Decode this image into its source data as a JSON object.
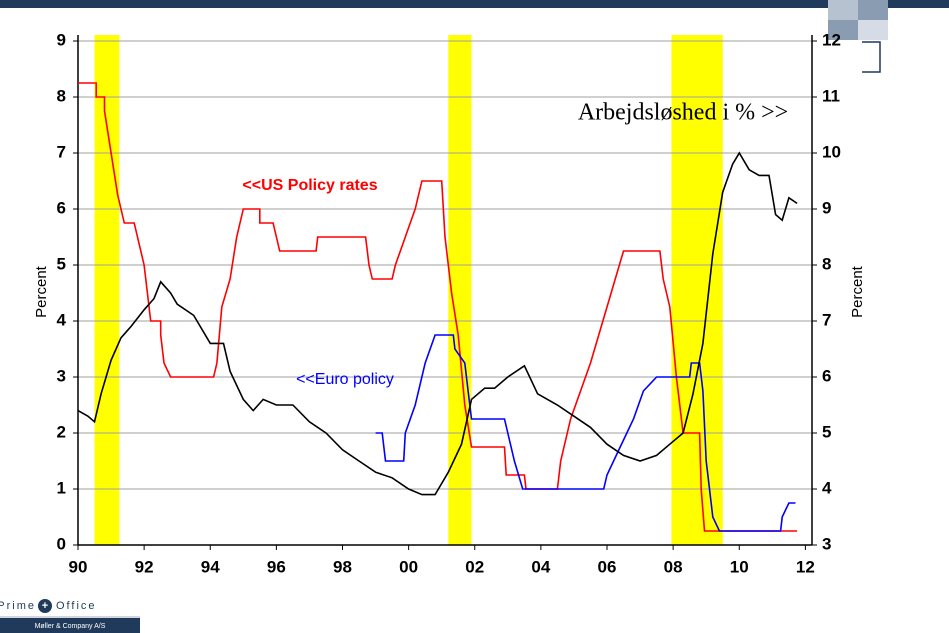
{
  "chart_data": {
    "type": "line",
    "ylabel": "Percent",
    "y2label": "Percent",
    "xlim": [
      1990,
      2012.2
    ],
    "ylim": [
      0,
      9
    ],
    "y2lim": [
      3,
      12
    ],
    "xticks": [
      {
        "value": 1990,
        "label": "90"
      },
      {
        "value": 1992,
        "label": "92"
      },
      {
        "value": 1994,
        "label": "94"
      },
      {
        "value": 1996,
        "label": "96"
      },
      {
        "value": 1998,
        "label": "98"
      },
      {
        "value": 2000,
        "label": "00"
      },
      {
        "value": 2002,
        "label": "02"
      },
      {
        "value": 2004,
        "label": "04"
      },
      {
        "value": 2006,
        "label": "06"
      },
      {
        "value": 2008,
        "label": "08"
      },
      {
        "value": 2010,
        "label": "10"
      },
      {
        "value": 2012,
        "label": "12"
      }
    ],
    "yticks": [
      0,
      1,
      2,
      3,
      4,
      5,
      6,
      7,
      8,
      9
    ],
    "y2ticks": [
      3,
      4,
      5,
      6,
      7,
      8,
      9,
      10,
      11,
      12
    ],
    "grid": true,
    "shaded_periods": {
      "color": "#ffff00",
      "ranges": [
        [
          1990.5,
          1991.25
        ],
        [
          2001.2,
          2001.9
        ],
        [
          2007.95,
          2009.5
        ]
      ]
    },
    "annotations": [
      {
        "text": "<<US Policy rates",
        "color": "#ff0000"
      },
      {
        "text": "<<Euro policy",
        "color": "#0000ff"
      },
      {
        "text": "Arbejdsløshed i % >>",
        "color": "#000000"
      }
    ],
    "series": [
      {
        "name": "US Policy rates",
        "color": "#ff0000",
        "x": [
          1990.0,
          1990.55,
          1990.55,
          1990.8,
          1990.8,
          1991.0,
          1991.2,
          1991.4,
          1991.7,
          1992.0,
          1992.2,
          1992.5,
          1992.5,
          1992.6,
          1992.8,
          1994.1,
          1994.2,
          1994.35,
          1994.6,
          1994.8,
          1995.0,
          1995.5,
          1995.5,
          1995.9,
          1996.1,
          1997.2,
          1997.25,
          1998.7,
          1998.8,
          1998.9,
          1999.5,
          1999.6,
          1999.9,
          2000.2,
          2000.4,
          2001.0,
          2001.1,
          2001.3,
          2001.5,
          2001.7,
          2001.9,
          2002.9,
          2002.95,
          2003.5,
          2003.55,
          2004.5,
          2004.6,
          2004.9,
          2005.5,
          2006.0,
          2006.5,
          2007.6,
          2007.7,
          2007.9,
          2008.1,
          2008.3,
          2008.8,
          2008.85,
          2008.95,
          2011.75
        ],
        "values": [
          8.25,
          8.25,
          8.0,
          8.0,
          7.75,
          7.0,
          6.25,
          5.75,
          5.75,
          5.0,
          4.0,
          4.0,
          3.75,
          3.25,
          3.0,
          3.0,
          3.25,
          4.25,
          4.75,
          5.5,
          6.0,
          6.0,
          5.75,
          5.75,
          5.25,
          5.25,
          5.5,
          5.5,
          5.0,
          4.75,
          4.75,
          5.0,
          5.5,
          6.0,
          6.5,
          6.5,
          5.5,
          4.5,
          3.75,
          2.5,
          1.75,
          1.75,
          1.25,
          1.25,
          1.0,
          1.0,
          1.5,
          2.25,
          3.25,
          4.25,
          5.25,
          5.25,
          4.75,
          4.25,
          3.0,
          2.0,
          2.0,
          1.0,
          0.25,
          0.25
        ]
      },
      {
        "name": "Euro policy",
        "color": "#0000ff",
        "x": [
          1999.0,
          1999.2,
          1999.3,
          1999.85,
          1999.9,
          2000.2,
          2000.5,
          2000.8,
          2001.35,
          2001.4,
          2001.7,
          2001.8,
          2001.9,
          2002.9,
          2003.0,
          2003.2,
          2003.45,
          2005.9,
          2006.0,
          2006.4,
          2006.8,
          2007.1,
          2007.5,
          2008.5,
          2008.55,
          2008.8,
          2008.9,
          2009.0,
          2009.2,
          2009.4,
          2011.25,
          2011.3,
          2011.5,
          2011.7
        ],
        "values": [
          2.0,
          2.0,
          1.5,
          1.5,
          2.0,
          2.5,
          3.25,
          3.75,
          3.75,
          3.5,
          3.25,
          2.75,
          2.25,
          2.25,
          2.0,
          1.5,
          1.0,
          1.0,
          1.25,
          1.75,
          2.25,
          2.75,
          3.0,
          3.0,
          3.25,
          3.25,
          2.75,
          1.5,
          0.5,
          0.25,
          0.25,
          0.5,
          0.75,
          0.75
        ]
      },
      {
        "name": "Arbejdsløshed",
        "color": "#000000",
        "axis": "y2",
        "x": [
          1990.0,
          1990.3,
          1990.5,
          1990.7,
          1991.0,
          1991.3,
          1991.6,
          1992.0,
          1992.3,
          1992.5,
          1992.8,
          1993.0,
          1993.5,
          1994.0,
          1994.4,
          1994.6,
          1995.0,
          1995.3,
          1995.6,
          1996.0,
          1996.5,
          1997.0,
          1997.5,
          1998.0,
          1998.5,
          1999.0,
          1999.5,
          2000.0,
          2000.4,
          2000.8,
          2001.2,
          2001.6,
          2001.9,
          2002.3,
          2002.6,
          2003.0,
          2003.5,
          2003.9,
          2004.5,
          2005.0,
          2005.5,
          2006.0,
          2006.5,
          2007.0,
          2007.5,
          2007.9,
          2008.3,
          2008.6,
          2008.9,
          2009.2,
          2009.5,
          2009.8,
          2010.0,
          2010.3,
          2010.6,
          2010.9,
          2011.1,
          2011.3,
          2011.5,
          2011.75
        ],
        "values": [
          5.4,
          5.3,
          5.2,
          5.7,
          6.3,
          6.7,
          6.9,
          7.2,
          7.4,
          7.7,
          7.5,
          7.3,
          7.1,
          6.6,
          6.6,
          6.1,
          5.6,
          5.4,
          5.6,
          5.5,
          5.5,
          5.2,
          5.0,
          4.7,
          4.5,
          4.3,
          4.2,
          4.0,
          3.9,
          3.9,
          4.3,
          4.8,
          5.6,
          5.8,
          5.8,
          6.0,
          6.2,
          5.7,
          5.5,
          5.3,
          5.1,
          4.8,
          4.6,
          4.5,
          4.6,
          4.8,
          5.0,
          5.7,
          6.6,
          8.2,
          9.3,
          9.8,
          10.0,
          9.7,
          9.6,
          9.6,
          8.9,
          8.8,
          9.2,
          9.1
        ]
      }
    ]
  },
  "footer": {
    "logo_left": "Prime",
    "logo_right": "Office",
    "company": "Møller & Company A/S"
  }
}
